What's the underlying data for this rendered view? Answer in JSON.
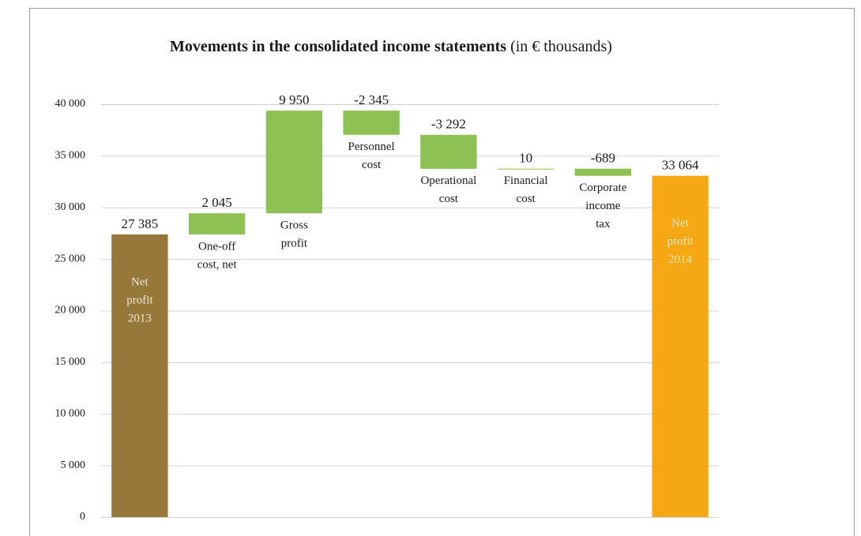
{
  "chart_data": {
    "type": "waterfall",
    "title": "Movements in the consolidated income statements",
    "title_note": "(in € thousands)",
    "categories": [
      [
        "Net",
        "profit",
        "2013"
      ],
      [
        "One-off",
        "cost, net"
      ],
      [
        "Gross",
        "profit"
      ],
      [
        "Personnel",
        "cost"
      ],
      [
        "Operational",
        "cost"
      ],
      [
        "Financial",
        "cost"
      ],
      [
        "Corporate",
        "income",
        "tax"
      ],
      [
        "Net",
        "profit",
        "2014"
      ]
    ],
    "measure": [
      "absolute",
      "relative",
      "relative",
      "relative",
      "relative",
      "relative",
      "relative",
      "total"
    ],
    "values": [
      27385,
      2045,
      9950,
      -2345,
      -3292,
      10,
      -689,
      33064
    ],
    "value_labels": [
      "27 385",
      "2 045",
      "9 950",
      "-2 345",
      "-3 292",
      "10",
      "-689",
      "33 064"
    ],
    "colors": [
      "#96783a",
      "#8dc153",
      "#8dc153",
      "#8dc153",
      "#8dc153",
      "#8dc153",
      "#8dc153",
      "#f5a814"
    ],
    "ylim": [
      0,
      40000
    ],
    "yticks": [
      0,
      {
        "value": 5000,
        "label": "5 000"
      },
      {
        "value": 10000,
        "label": "10 000"
      },
      {
        "value": 15000,
        "label": "15 000"
      },
      {
        "value": 20000,
        "label": "20 000"
      },
      {
        "value": 25000,
        "label": "25 000"
      },
      {
        "value": 30000,
        "label": "30 000"
      },
      {
        "value": 35000,
        "label": "35 000"
      },
      {
        "value": 40000,
        "label": "40 000"
      }
    ],
    "grid": true
  }
}
